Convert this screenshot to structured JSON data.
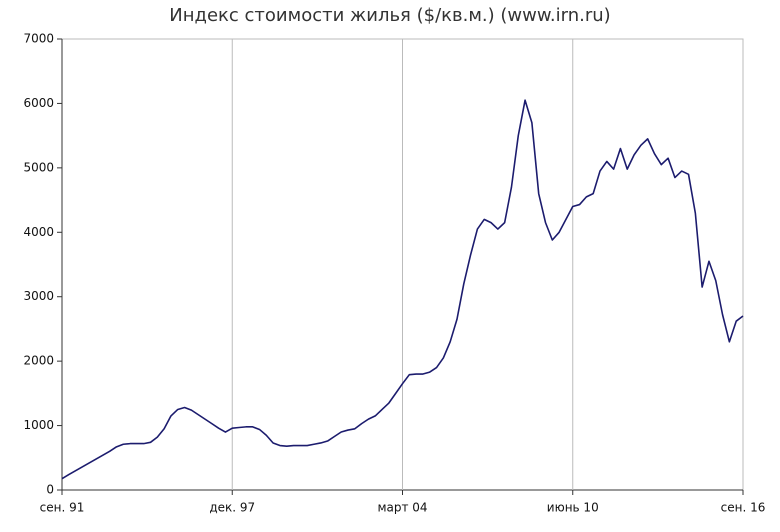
{
  "chart_data": {
    "type": "line",
    "title": "Индекс стоимости жилья ($/кв.м.) (www.irn.ru)",
    "categories": [
      "сен. 91",
      null,
      null,
      null,
      null,
      null,
      null,
      null,
      null,
      null,
      null,
      null,
      null,
      null,
      null,
      null,
      null,
      null,
      null,
      null,
      null,
      null,
      null,
      null,
      null,
      "дек. 97",
      null,
      null,
      null,
      null,
      null,
      null,
      null,
      null,
      null,
      null,
      null,
      null,
      null,
      null,
      null,
      null,
      null,
      null,
      null,
      null,
      null,
      null,
      null,
      null,
      "март 04",
      null,
      null,
      null,
      null,
      null,
      null,
      null,
      null,
      null,
      null,
      null,
      null,
      null,
      null,
      null,
      null,
      null,
      null,
      null,
      null,
      null,
      null,
      null,
      null,
      "июнь 10",
      null,
      null,
      null,
      null,
      null,
      null,
      null,
      null,
      null,
      null,
      null,
      null,
      null,
      null,
      null,
      null,
      null,
      null,
      null,
      null,
      null,
      null,
      null,
      null,
      "сен. 16"
    ],
    "values": [
      175,
      240,
      300,
      360,
      420,
      480,
      540,
      600,
      670,
      710,
      720,
      720,
      720,
      740,
      820,
      950,
      1150,
      1250,
      1280,
      1240,
      1170,
      1100,
      1030,
      960,
      900,
      960,
      970,
      980,
      980,
      940,
      850,
      730,
      690,
      680,
      690,
      690,
      690,
      710,
      730,
      760,
      830,
      900,
      930,
      950,
      1030,
      1100,
      1150,
      1250,
      1350,
      1500,
      1650,
      1790,
      1800,
      1800,
      1830,
      1900,
      2050,
      2300,
      2650,
      3200,
      3650,
      4050,
      4200,
      4150,
      4050,
      4150,
      4700,
      5500,
      6050,
      5700,
      4600,
      4150,
      3880,
      4000,
      4200,
      4400,
      4430,
      4550,
      4600,
      4950,
      5100,
      4980,
      5300,
      4980,
      5200,
      5350,
      5450,
      5220,
      5050,
      5150,
      4850,
      4950,
      4900,
      4300,
      3150,
      3550,
      3250,
      2720,
      2300,
      2620,
      2700
    ],
    "color": "#1c1c6e",
    "ylim": [
      0,
      7000
    ],
    "yticks": [
      0,
      1000,
      2000,
      3000,
      4000,
      5000,
      6000,
      7000
    ],
    "grid": true
  }
}
